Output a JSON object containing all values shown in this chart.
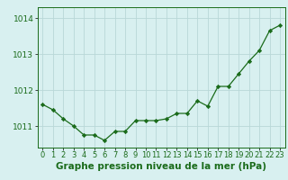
{
  "x": [
    0,
    1,
    2,
    3,
    4,
    5,
    6,
    7,
    8,
    9,
    10,
    11,
    12,
    13,
    14,
    15,
    16,
    17,
    18,
    19,
    20,
    21,
    22,
    23
  ],
  "y": [
    1011.6,
    1011.45,
    1011.2,
    1011.0,
    1010.75,
    1010.75,
    1010.6,
    1010.85,
    1010.85,
    1011.15,
    1011.15,
    1011.15,
    1011.2,
    1011.35,
    1011.35,
    1011.7,
    1011.55,
    1012.1,
    1012.1,
    1012.45,
    1012.8,
    1013.1,
    1013.65,
    1013.8
  ],
  "line_color": "#1a6b1a",
  "marker": "D",
  "marker_size": 2.2,
  "background_color": "#d8f0f0",
  "grid_color": "#b8d8d8",
  "ylim": [
    1010.4,
    1014.3
  ],
  "yticks": [
    1011,
    1012,
    1013,
    1014
  ],
  "xlim": [
    -0.5,
    23.5
  ],
  "xlabel": "Graphe pression niveau de la mer (hPa)",
  "xlabel_fontsize": 7.5,
  "tick_labelsize": 6.5,
  "linewidth": 0.9
}
